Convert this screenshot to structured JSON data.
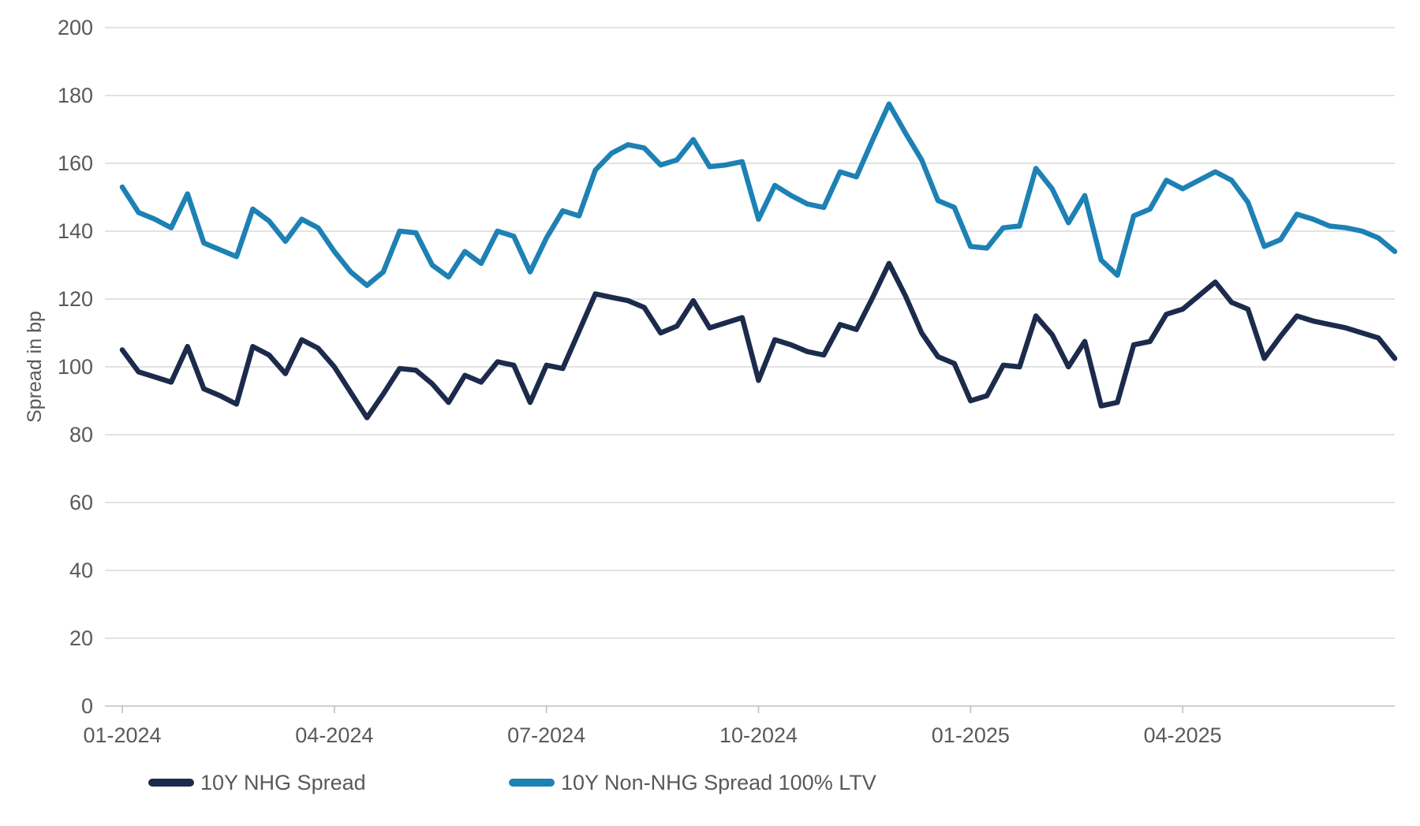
{
  "chart_data": {
    "type": "line",
    "title": "",
    "xlabel": "",
    "ylabel": "Spread in bp",
    "ylim": [
      0,
      200
    ],
    "y_ticks": [
      0,
      20,
      40,
      60,
      80,
      100,
      120,
      140,
      160,
      180,
      200
    ],
    "x_ticks": [
      {
        "label": "01-2024",
        "week": 0
      },
      {
        "label": "04-2024",
        "week": 13
      },
      {
        "label": "07-2024",
        "week": 26
      },
      {
        "label": "10-2024",
        "week": 39
      },
      {
        "label": "01-2025",
        "week": 52
      },
      {
        "label": "04-2025",
        "week": 65
      }
    ],
    "grid": "horizontal",
    "legend_position": "bottom-left",
    "series": [
      {
        "name": "10Y NHG Spread",
        "color": "#1c2b4b",
        "values": [
          105,
          98.5,
          97,
          95.5,
          106,
          93.5,
          91.5,
          89,
          106,
          103.5,
          98,
          108,
          105.5,
          100,
          92.5,
          85,
          92,
          99.5,
          99,
          95,
          89.5,
          97.5,
          95.5,
          101.5,
          100.5,
          89.5,
          100.5,
          99.5,
          110.5,
          121.5,
          120.5,
          119.5,
          117.5,
          110,
          112,
          119.5,
          111.5,
          113,
          114.5,
          96,
          108,
          106.5,
          104.5,
          103.5,
          112.5,
          111,
          120.5,
          130.5,
          121,
          110,
          103,
          101,
          90,
          91.5,
          100.5,
          100,
          115,
          109.5,
          100,
          107.5,
          88.5,
          89.5,
          106.5,
          107.5,
          115.5,
          117,
          121,
          125,
          119,
          117,
          102.5,
          109,
          115,
          113.5,
          112.5,
          111.5,
          110,
          108.5,
          102.5
        ]
      },
      {
        "name": "10Y Non-NHG Spread 100% LTV",
        "color": "#1d81b4",
        "values": [
          153,
          145.5,
          143.5,
          141,
          151,
          136.5,
          134.5,
          132.5,
          146.5,
          143,
          137,
          143.5,
          141,
          134,
          128,
          124,
          128,
          140,
          139.5,
          130,
          126.5,
          134,
          130.5,
          140,
          138.5,
          128,
          138,
          146,
          144.5,
          158,
          163,
          165.5,
          164.5,
          159.5,
          161,
          167,
          159,
          159.5,
          160.5,
          143.5,
          153.5,
          150.5,
          148,
          147,
          157.5,
          156,
          167,
          177.5,
          169,
          161,
          149,
          147,
          135.5,
          135,
          141,
          141.5,
          158.5,
          152.5,
          142.5,
          150.5,
          131.5,
          127,
          144.5,
          146.5,
          155,
          152.5,
          155,
          157.5,
          155,
          148.5,
          135.5,
          137.5,
          145,
          143.5,
          141.5,
          141,
          140,
          138,
          134
        ]
      }
    ]
  },
  "colors": {
    "axis_line": "#bfbfbf",
    "gridline": "#d9d9d9",
    "tick_text": "#595959",
    "background": "#ffffff"
  }
}
